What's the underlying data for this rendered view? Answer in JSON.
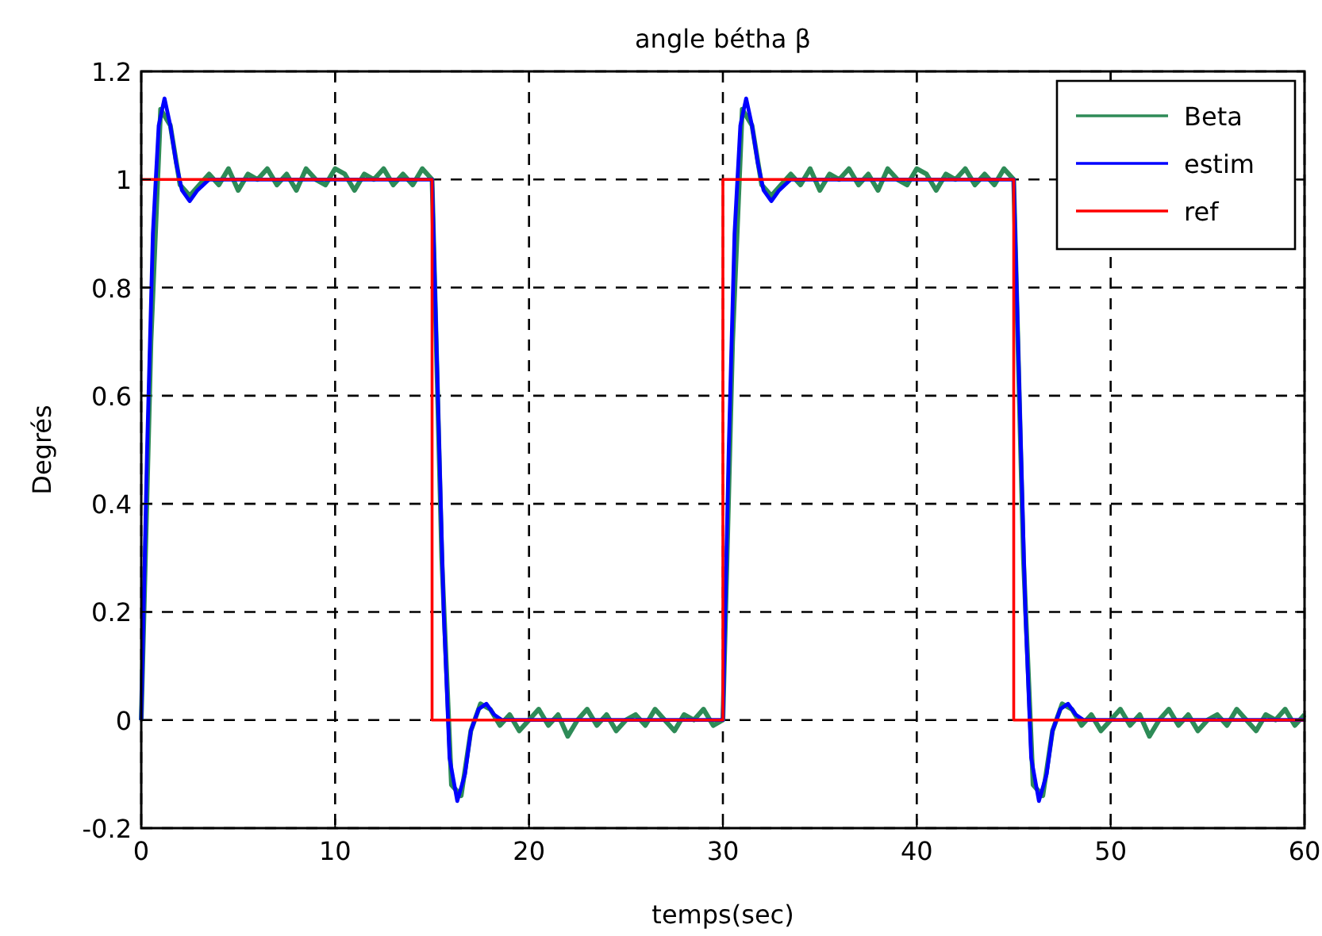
{
  "chart_data": {
    "type": "line",
    "title": "angle bétha β",
    "xlabel": "temps(sec)",
    "ylabel": "Degrés",
    "xlim": [
      0,
      60
    ],
    "xticks": [
      0,
      10,
      20,
      30,
      40,
      50,
      60
    ],
    "ylim": [
      -0.2,
      1.2
    ],
    "yticks": [
      -0.2,
      0,
      0.2,
      0.4,
      0.6,
      0.8,
      1,
      1.2
    ],
    "grid": true,
    "legend": "top right",
    "series": [
      {
        "name": "Beta",
        "color": "#2e8b57",
        "x": [
          0,
          0.5,
          1,
          1.5,
          2,
          2.5,
          3,
          3.5,
          4,
          4.5,
          5,
          5.5,
          6,
          6.5,
          7,
          7.5,
          8,
          8.5,
          9,
          9.5,
          10,
          10.5,
          11,
          11.5,
          12,
          12.5,
          13,
          13.5,
          14,
          14.5,
          15,
          15.5,
          16,
          16.5,
          17,
          17.5,
          18,
          18.5,
          19,
          19.5,
          20,
          20.5,
          21,
          21.5,
          22,
          22.5,
          23,
          23.5,
          24,
          24.5,
          25,
          25.5,
          26,
          26.5,
          27,
          27.5,
          28,
          28.5,
          29,
          29.5,
          30,
          30.5,
          31,
          31.5,
          32,
          32.5,
          33,
          33.5,
          34,
          34.5,
          35,
          35.5,
          36,
          36.5,
          37,
          37.5,
          38,
          38.5,
          39,
          39.5,
          40,
          40.5,
          41,
          41.5,
          42,
          42.5,
          43,
          43.5,
          44,
          44.5,
          45,
          45.5,
          46,
          46.5,
          47,
          47.5,
          48,
          48.5,
          49,
          49.5,
          50,
          50.5,
          51,
          51.5,
          52,
          52.5,
          53,
          53.5,
          54,
          54.5,
          55,
          55.5,
          56,
          56.5,
          57,
          57.5,
          58,
          58.5,
          59,
          59.5,
          60
        ],
        "values": [
          0,
          0.7,
          1.13,
          1.1,
          0.99,
          0.97,
          0.99,
          1.01,
          0.99,
          1.02,
          0.98,
          1.01,
          1.0,
          1.02,
          0.99,
          1.01,
          0.98,
          1.02,
          1.0,
          0.99,
          1.02,
          1.01,
          0.98,
          1.01,
          1.0,
          1.02,
          0.99,
          1.01,
          0.99,
          1.02,
          1.0,
          0.3,
          -0.12,
          -0.14,
          -0.02,
          0.03,
          0.02,
          -0.01,
          0.01,
          -0.02,
          0.0,
          0.02,
          -0.01,
          0.01,
          -0.03,
          0.0,
          0.02,
          -0.01,
          0.01,
          -0.02,
          0.0,
          0.01,
          -0.01,
          0.02,
          0.0,
          -0.02,
          0.01,
          0.0,
          0.02,
          -0.01,
          0,
          0.7,
          1.13,
          1.1,
          0.99,
          0.97,
          0.99,
          1.01,
          0.99,
          1.02,
          0.98,
          1.01,
          1.0,
          1.02,
          0.99,
          1.01,
          0.98,
          1.02,
          1.0,
          0.99,
          1.02,
          1.01,
          0.98,
          1.01,
          1.0,
          1.02,
          0.99,
          1.01,
          0.99,
          1.02,
          1.0,
          0.3,
          -0.12,
          -0.14,
          -0.02,
          0.03,
          0.02,
          -0.01,
          0.01,
          -0.02,
          0.0,
          0.02,
          -0.01,
          0.01,
          -0.03,
          0.0,
          0.02,
          -0.01,
          0.01,
          -0.02,
          0.0,
          0.01,
          -0.01,
          0.02,
          0.0,
          -0.02,
          0.01,
          0.0,
          0.02,
          -0.01,
          0.01
        ]
      },
      {
        "name": "estim",
        "color": "#0000ff",
        "x": [
          0,
          0.3,
          0.6,
          0.9,
          1.2,
          1.5,
          1.8,
          2.1,
          2.5,
          2.9,
          3.5,
          15,
          15.3,
          15.6,
          15.9,
          16.3,
          16.7,
          17,
          17.4,
          17.8,
          18.2,
          18.6,
          30,
          30.3,
          30.6,
          30.9,
          31.2,
          31.5,
          31.8,
          32.1,
          32.5,
          32.9,
          33.5,
          45,
          45.3,
          45.6,
          45.9,
          46.3,
          46.7,
          47,
          47.4,
          47.8,
          48.2,
          48.6,
          60
        ],
        "values": [
          0,
          0.5,
          0.9,
          1.1,
          1.15,
          1.1,
          1.03,
          0.98,
          0.96,
          0.98,
          1,
          1,
          0.6,
          0.2,
          -0.07,
          -0.15,
          -0.1,
          -0.02,
          0.02,
          0.03,
          0.01,
          0,
          0,
          0.5,
          0.9,
          1.1,
          1.15,
          1.1,
          1.03,
          0.98,
          0.96,
          0.98,
          1,
          1,
          0.6,
          0.2,
          -0.07,
          -0.15,
          -0.1,
          -0.02,
          0.02,
          0.03,
          0.01,
          0,
          0
        ]
      },
      {
        "name": "ref",
        "color": "#ff0000",
        "x": [
          0,
          15,
          15,
          30,
          30,
          45,
          45,
          60
        ],
        "values": [
          1,
          1,
          0,
          0,
          1,
          1,
          0,
          0
        ]
      }
    ]
  }
}
